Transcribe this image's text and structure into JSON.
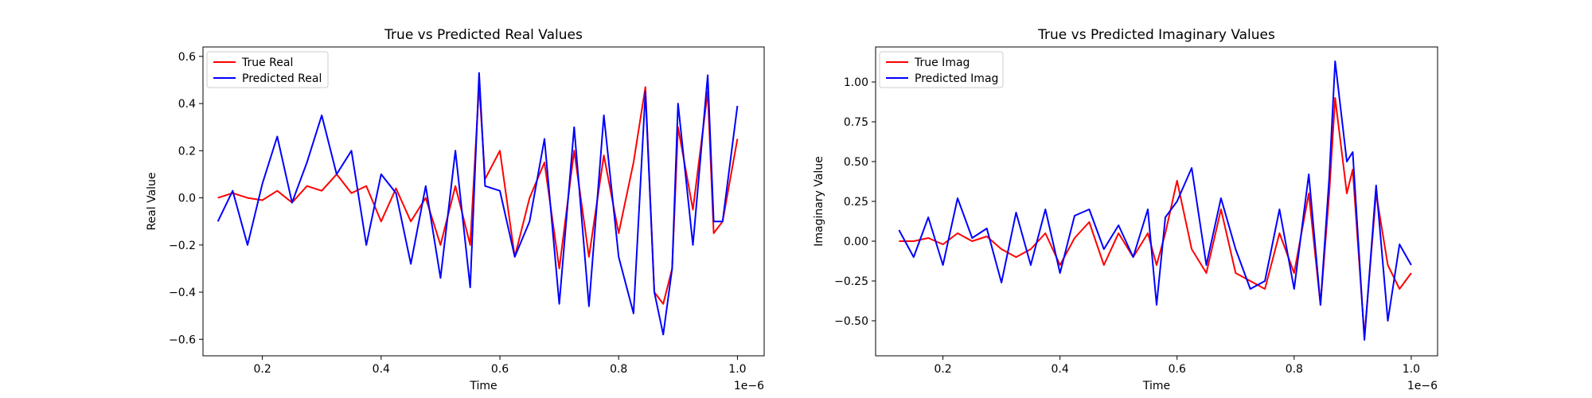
{
  "chart_data": [
    {
      "type": "line",
      "title": "True vs Predicted Real Values",
      "xlabel": "Time",
      "ylabel": "Real Value",
      "x_offset_label": "1e−6",
      "xlim": [
        0.1,
        1.045
      ],
      "ylim": [
        -0.67,
        0.64
      ],
      "xticks": [
        0.2,
        0.4,
        0.6,
        0.8,
        1.0
      ],
      "xtick_labels": [
        "0.2",
        "0.4",
        "0.6",
        "0.8",
        "1.0"
      ],
      "yticks": [
        -0.6,
        -0.4,
        -0.2,
        0.0,
        0.2,
        0.4,
        0.6
      ],
      "ytick_labels": [
        "−0.6",
        "−0.4",
        "−0.2",
        "0.0",
        "0.2",
        "0.4",
        "0.6"
      ],
      "grid": false,
      "legend_position": "top-left",
      "x": [
        0.125,
        0.15,
        0.175,
        0.2,
        0.225,
        0.25,
        0.275,
        0.3,
        0.325,
        0.35,
        0.375,
        0.4,
        0.425,
        0.45,
        0.475,
        0.5,
        0.525,
        0.55,
        0.565,
        0.575,
        0.6,
        0.625,
        0.65,
        0.675,
        0.7,
        0.725,
        0.75,
        0.775,
        0.8,
        0.825,
        0.845,
        0.86,
        0.875,
        0.89,
        0.9,
        0.925,
        0.95,
        0.96,
        0.975,
        1.0
      ],
      "series": [
        {
          "name": "True Real",
          "color": "#ff0000",
          "values": [
            0.0,
            0.02,
            0.0,
            -0.01,
            0.03,
            -0.02,
            0.05,
            0.03,
            0.1,
            0.02,
            0.05,
            -0.1,
            0.04,
            -0.1,
            0.0,
            -0.2,
            0.05,
            -0.2,
            0.48,
            0.08,
            0.2,
            -0.25,
            0.0,
            0.15,
            -0.3,
            0.2,
            -0.25,
            0.18,
            -0.15,
            0.15,
            0.47,
            -0.4,
            -0.45,
            -0.3,
            0.3,
            -0.05,
            0.45,
            -0.15,
            -0.1,
            0.25
          ]
        },
        {
          "name": "Predicted Real",
          "color": "#0000ff",
          "values": [
            -0.1,
            0.03,
            -0.2,
            0.06,
            0.26,
            -0.02,
            0.15,
            0.35,
            0.1,
            0.2,
            -0.2,
            0.1,
            0.02,
            -0.28,
            0.05,
            -0.34,
            0.2,
            -0.38,
            0.53,
            0.05,
            0.03,
            -0.25,
            -0.1,
            0.25,
            -0.45,
            0.3,
            -0.46,
            0.35,
            -0.25,
            -0.49,
            0.45,
            -0.4,
            -0.58,
            -0.3,
            0.4,
            -0.2,
            0.52,
            -0.1,
            -0.1,
            0.39
          ]
        }
      ]
    },
    {
      "type": "line",
      "title": "True vs Predicted Imaginary Values",
      "xlabel": "Time",
      "ylabel": "Imaginary Value",
      "x_offset_label": "1e−6",
      "xlim": [
        0.085,
        1.045
      ],
      "ylim": [
        -0.72,
        1.22
      ],
      "xticks": [
        0.2,
        0.4,
        0.6,
        0.8,
        1.0
      ],
      "xtick_labels": [
        "0.2",
        "0.4",
        "0.6",
        "0.8",
        "1.0"
      ],
      "yticks": [
        -0.5,
        -0.25,
        0.0,
        0.25,
        0.5,
        0.75,
        1.0
      ],
      "ytick_labels": [
        "−0.50",
        "−0.25",
        "0.00",
        "0.25",
        "0.50",
        "0.75",
        "1.00"
      ],
      "grid": false,
      "legend_position": "top-left",
      "x": [
        0.125,
        0.15,
        0.175,
        0.2,
        0.225,
        0.25,
        0.275,
        0.3,
        0.325,
        0.35,
        0.375,
        0.4,
        0.425,
        0.45,
        0.475,
        0.5,
        0.525,
        0.55,
        0.565,
        0.58,
        0.6,
        0.625,
        0.65,
        0.675,
        0.7,
        0.725,
        0.75,
        0.775,
        0.8,
        0.825,
        0.845,
        0.86,
        0.87,
        0.89,
        0.9,
        0.92,
        0.94,
        0.96,
        0.98,
        1.0
      ],
      "series": [
        {
          "name": "True Imag",
          "color": "#ff0000",
          "values": [
            0.0,
            0.0,
            0.02,
            -0.02,
            0.05,
            0.0,
            0.03,
            -0.05,
            -0.1,
            -0.05,
            0.05,
            -0.15,
            0.02,
            0.12,
            -0.15,
            0.05,
            -0.1,
            0.05,
            -0.15,
            0.05,
            0.38,
            -0.05,
            -0.2,
            0.2,
            -0.2,
            -0.25,
            -0.3,
            0.05,
            -0.2,
            0.3,
            -0.4,
            0.3,
            0.9,
            0.3,
            0.45,
            -0.6,
            0.3,
            -0.15,
            -0.3,
            -0.2
          ]
        },
        {
          "name": "Predicted Imag",
          "color": "#0000ff",
          "values": [
            0.07,
            -0.1,
            0.15,
            -0.15,
            0.27,
            0.02,
            0.08,
            -0.26,
            0.18,
            -0.15,
            0.2,
            -0.2,
            0.16,
            0.2,
            -0.05,
            0.1,
            -0.1,
            0.2,
            -0.4,
            0.15,
            0.25,
            0.46,
            -0.15,
            0.27,
            -0.05,
            -0.3,
            -0.25,
            0.2,
            -0.3,
            0.42,
            -0.4,
            0.4,
            1.13,
            0.5,
            0.56,
            -0.62,
            0.35,
            -0.5,
            -0.02,
            -0.15
          ]
        }
      ]
    }
  ]
}
